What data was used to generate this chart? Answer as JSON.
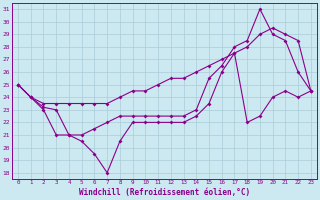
{
  "xlabel": "Windchill (Refroidissement éolien,°C)",
  "hours": [
    0,
    1,
    2,
    3,
    4,
    5,
    6,
    7,
    8,
    9,
    10,
    11,
    12,
    13,
    14,
    15,
    16,
    17,
    18,
    19,
    20,
    21,
    22,
    23
  ],
  "line1": [
    25.0,
    24.0,
    23.5,
    23.5,
    23.5,
    23.5,
    23.5,
    23.5,
    24.0,
    24.5,
    24.5,
    25.0,
    25.5,
    25.5,
    26.0,
    26.5,
    27.0,
    27.5,
    28.0,
    29.0,
    29.5,
    29.0,
    28.5,
    24.5
  ],
  "line2": [
    25.0,
    24.0,
    23.2,
    23.0,
    21.0,
    21.0,
    21.5,
    22.0,
    22.5,
    22.5,
    22.5,
    22.5,
    22.5,
    22.5,
    23.0,
    25.5,
    26.5,
    28.0,
    28.5,
    31.0,
    29.0,
    28.5,
    26.0,
    24.5
  ],
  "line3": [
    25.0,
    24.0,
    23.0,
    21.0,
    21.0,
    20.5,
    19.5,
    18.0,
    20.5,
    22.0,
    22.0,
    22.0,
    22.0,
    22.0,
    22.5,
    23.5,
    26.0,
    27.5,
    22.0,
    22.5,
    24.0,
    24.5,
    24.0,
    24.5
  ],
  "line_color": "#8b008b",
  "bg_color": "#cce8f0",
  "grid_color": "#aaccd8",
  "ylim": [
    17.5,
    31.5
  ],
  "yticks": [
    18,
    19,
    20,
    21,
    22,
    23,
    24,
    25,
    26,
    27,
    28,
    29,
    30,
    31
  ],
  "figsize": [
    3.2,
    2.0
  ],
  "dpi": 100
}
